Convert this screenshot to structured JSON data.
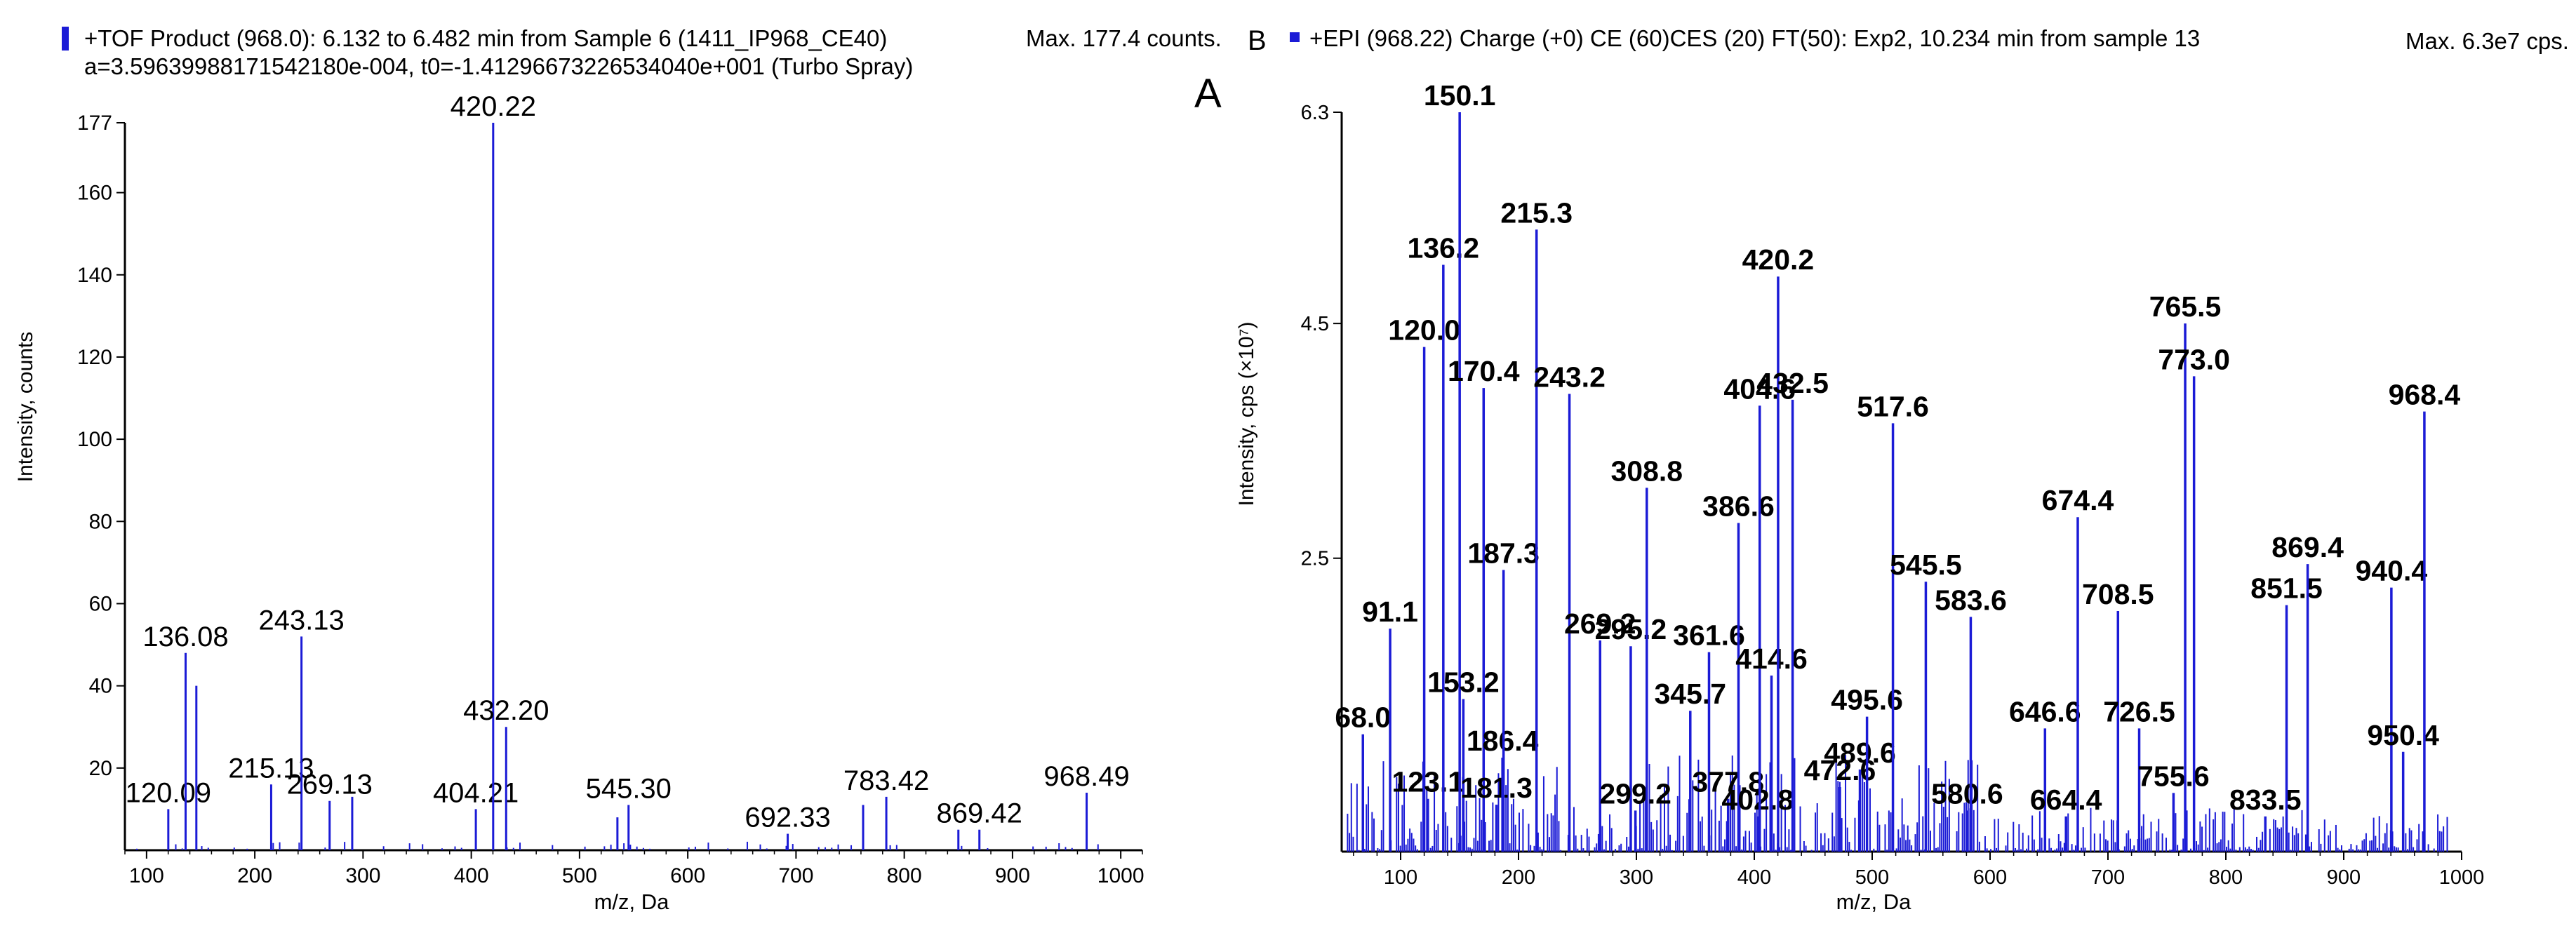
{
  "colors": {
    "accent": "#1b1bd6",
    "axis": "#000000"
  },
  "panel_a": {
    "panel_label": "A",
    "header_line1": "+TOF Product (968.0): 6.132 to 6.482 min from Sample 6 (1411_IP968_CE40)",
    "header_line2": "a=3.59639988171542180e-004, t0=-1.41296673226534040e+001 (Turbo Spray)",
    "max_text": "Max. 177.4 counts."
  },
  "panel_b": {
    "panel_label": "B",
    "header_line1": "+EPI (968.22) Charge (+0) CE (60)CES (20) FT(50): Exp2, 10.234 min from sample 13",
    "max_text": "Max. 6.3e7 cps."
  },
  "chart_data": [
    {
      "id": "A",
      "type": "bar",
      "xlabel": "m/z, Da",
      "ylabel": "Intensity, counts",
      "xlim": [
        80,
        1020
      ],
      "ylim": [
        0,
        177
      ],
      "xticks": [
        100,
        200,
        300,
        400,
        500,
        600,
        700,
        800,
        900,
        1000
      ],
      "yticks": [
        20,
        40,
        60,
        80,
        100,
        120,
        140,
        160,
        177
      ],
      "peaks": [
        {
          "x": 120.09,
          "y": 10,
          "label": "120.09"
        },
        {
          "x": 136.08,
          "y": 48,
          "label": "136.08"
        },
        {
          "x": 146,
          "y": 40
        },
        {
          "x": 215.13,
          "y": 16,
          "label": "215.13"
        },
        {
          "x": 243.13,
          "y": 52,
          "label": "243.13"
        },
        {
          "x": 269.13,
          "y": 12,
          "label": "269.13"
        },
        {
          "x": 290,
          "y": 13
        },
        {
          "x": 404.21,
          "y": 10,
          "label": "404.21"
        },
        {
          "x": 420.22,
          "y": 177,
          "label": "420.22"
        },
        {
          "x": 432.2,
          "y": 30,
          "label": "432.20"
        },
        {
          "x": 535,
          "y": 8
        },
        {
          "x": 545.3,
          "y": 11,
          "label": "545.30"
        },
        {
          "x": 692.33,
          "y": 4,
          "label": "692.33"
        },
        {
          "x": 762,
          "y": 11
        },
        {
          "x": 783.42,
          "y": 13,
          "label": "783.42"
        },
        {
          "x": 850,
          "y": 5
        },
        {
          "x": 869.42,
          "y": 5,
          "label": "869.42"
        },
        {
          "x": 968.49,
          "y": 14,
          "label": "968.49"
        }
      ]
    },
    {
      "id": "B",
      "type": "bar",
      "xlabel": "m/z, Da",
      "ylabel": "Intensity, cps (×10⁷)",
      "xlim": [
        50,
        1000
      ],
      "ylim": [
        0,
        6.3
      ],
      "xticks": [
        100,
        200,
        300,
        400,
        500,
        600,
        700,
        800,
        900,
        1000
      ],
      "yticks": [
        2.5,
        4.5,
        6.3
      ],
      "peaks": [
        {
          "x": 68.0,
          "y": 1.0,
          "label": "68.0"
        },
        {
          "x": 91.1,
          "y": 1.9,
          "label": "91.1"
        },
        {
          "x": 120.0,
          "y": 4.3,
          "label": "120.0"
        },
        {
          "x": 123.1,
          "y": 0.45,
          "label": "123.1"
        },
        {
          "x": 136.2,
          "y": 5.0,
          "label": "136.2"
        },
        {
          "x": 150.1,
          "y": 6.3,
          "label": "150.1"
        },
        {
          "x": 153.2,
          "y": 1.3,
          "label": "153.2"
        },
        {
          "x": 170.4,
          "y": 3.95,
          "label": "170.4"
        },
        {
          "x": 181.3,
          "y": 0.4,
          "label": "181.3"
        },
        {
          "x": 186.4,
          "y": 0.8,
          "label": "186.4"
        },
        {
          "x": 187.3,
          "y": 2.4,
          "label": "187.3"
        },
        {
          "x": 215.3,
          "y": 5.3,
          "label": "215.3"
        },
        {
          "x": 243.2,
          "y": 3.9,
          "label": "243.2"
        },
        {
          "x": 269.2,
          "y": 1.8,
          "label": "269.2"
        },
        {
          "x": 295.2,
          "y": 1.75,
          "label": "295.2"
        },
        {
          "x": 299.2,
          "y": 0.35,
          "label": "299.2"
        },
        {
          "x": 308.8,
          "y": 3.1,
          "label": "308.8"
        },
        {
          "x": 345.7,
          "y": 1.2,
          "label": "345.7"
        },
        {
          "x": 361.6,
          "y": 1.7,
          "label": "361.6"
        },
        {
          "x": 377.8,
          "y": 0.45,
          "label": "377.8"
        },
        {
          "x": 386.6,
          "y": 2.8,
          "label": "386.6"
        },
        {
          "x": 402.8,
          "y": 0.3,
          "label": "402.8"
        },
        {
          "x": 404.6,
          "y": 3.8,
          "label": "404.6"
        },
        {
          "x": 414.6,
          "y": 1.5,
          "label": "414.6"
        },
        {
          "x": 420.2,
          "y": 4.9,
          "label": "420.2"
        },
        {
          "x": 432.5,
          "y": 3.85,
          "label": "432.5"
        },
        {
          "x": 472.6,
          "y": 0.55,
          "label": "472.6"
        },
        {
          "x": 489.6,
          "y": 0.7,
          "label": "489.6"
        },
        {
          "x": 495.6,
          "y": 1.15,
          "label": "495.6"
        },
        {
          "x": 517.6,
          "y": 3.65,
          "label": "517.6"
        },
        {
          "x": 545.5,
          "y": 2.3,
          "label": "545.5"
        },
        {
          "x": 580.6,
          "y": 0.35,
          "label": "580.6"
        },
        {
          "x": 583.6,
          "y": 2.0,
          "label": "583.6"
        },
        {
          "x": 646.6,
          "y": 1.05,
          "label": "646.6"
        },
        {
          "x": 664.4,
          "y": 0.3,
          "label": "664.4"
        },
        {
          "x": 674.4,
          "y": 2.85,
          "label": "674.4"
        },
        {
          "x": 708.5,
          "y": 2.05,
          "label": "708.5"
        },
        {
          "x": 726.5,
          "y": 1.05,
          "label": "726.5"
        },
        {
          "x": 755.6,
          "y": 0.5,
          "label": "755.6"
        },
        {
          "x": 765.5,
          "y": 4.5,
          "label": "765.5"
        },
        {
          "x": 773.0,
          "y": 4.05,
          "label": "773.0"
        },
        {
          "x": 833.5,
          "y": 0.3,
          "label": "833.5"
        },
        {
          "x": 851.5,
          "y": 2.1,
          "label": "851.5"
        },
        {
          "x": 869.4,
          "y": 2.45,
          "label": "869.4"
        },
        {
          "x": 940.4,
          "y": 2.25,
          "label": "940.4"
        },
        {
          "x": 950.4,
          "y": 0.85,
          "label": "950.4"
        },
        {
          "x": 968.4,
          "y": 3.75,
          "label": "968.4"
        }
      ]
    }
  ]
}
